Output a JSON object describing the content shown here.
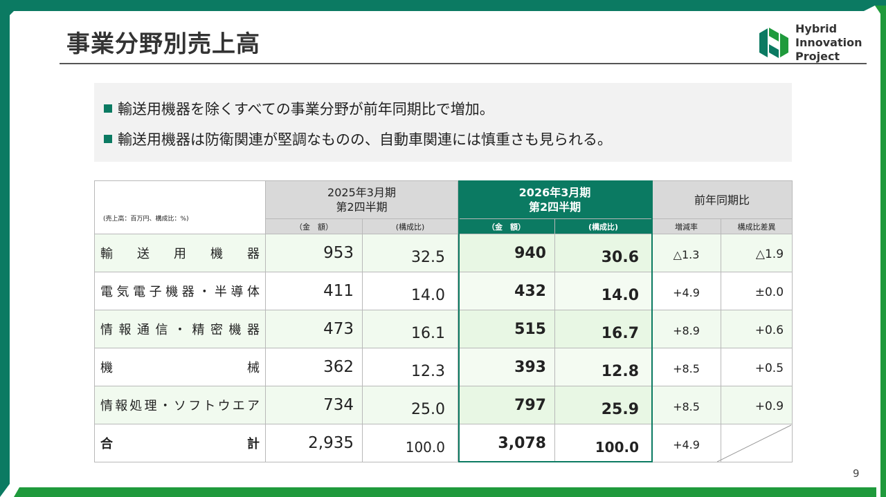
{
  "slide": {
    "title": "事業分野別売上高",
    "page_number": "9",
    "logo": {
      "line1": "Hybrid",
      "line2": "Innovation",
      "line3": "Project"
    }
  },
  "summary": {
    "bullets": [
      "輸送用機器を除くすべての事業分野が前年同期比で増加。",
      "輸送用機器は防衛関連が堅調なものの、自動車関連には慎重さも見られる。"
    ]
  },
  "table": {
    "unit_note": "(売上高：百万円、構成比：%)",
    "prev_period_line1": "2025年3月期",
    "prev_period_line2": "第2四半期",
    "cur_period_line1": "2026年3月期",
    "cur_period_line2": "第2四半期",
    "yoy_header": "前年同期比",
    "sub_amount": "（金　額）",
    "sub_ratio": "(構成比)",
    "sub_change": "増減率",
    "sub_ratio_diff": "構成比差異",
    "rows": [
      {
        "category": "輸送用機器",
        "prev_amount": "953",
        "prev_ratio": "32.5",
        "cur_amount": "940",
        "cur_ratio": "30.6",
        "change": "△1.3",
        "ratio_diff": "△1.9"
      },
      {
        "category": "電気電子機器・半導体",
        "prev_amount": "411",
        "prev_ratio": "14.0",
        "cur_amount": "432",
        "cur_ratio": "14.0",
        "change": "+4.9",
        "ratio_diff": "±0.0"
      },
      {
        "category": "情報通信・精密機器",
        "prev_amount": "473",
        "prev_ratio": "16.1",
        "cur_amount": "515",
        "cur_ratio": "16.7",
        "change": "+8.9",
        "ratio_diff": "+0.6"
      },
      {
        "category": "機械",
        "prev_amount": "362",
        "prev_ratio": "12.3",
        "cur_amount": "393",
        "cur_ratio": "12.8",
        "change": "+8.5",
        "ratio_diff": "+0.5"
      },
      {
        "category": "情報処理・ソフトウエア",
        "prev_amount": "734",
        "prev_ratio": "25.0",
        "cur_amount": "797",
        "cur_ratio": "25.9",
        "change": "+8.5",
        "ratio_diff": "+0.9"
      }
    ],
    "total": {
      "category": "合計",
      "prev_amount": "2,935",
      "prev_ratio": "100.0",
      "cur_amount": "3,078",
      "cur_ratio": "100.0",
      "change": "+4.9"
    }
  },
  "colors": {
    "accent": "#0b7a62",
    "frame_green": "#1f9a3c",
    "header_grey": "#d9d9d9",
    "row_tint": "#f1faef"
  }
}
